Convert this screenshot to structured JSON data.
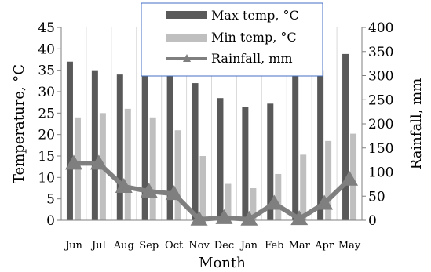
{
  "chart_data": {
    "type": "bar",
    "categories": [
      "Jun",
      "Jul",
      "Aug",
      "Sep",
      "Oct",
      "Nov",
      "Dec",
      "Jan",
      "Feb",
      "Mar",
      "Apr",
      "May"
    ],
    "series": [
      {
        "name": "Max temp, °C",
        "type": "bar",
        "axis": "left",
        "color": "#595959",
        "values": [
          37,
          35,
          34,
          36,
          35,
          32,
          28.5,
          26.5,
          27.2,
          34.5,
          35,
          38.8
        ]
      },
      {
        "name": "Min temp, °C",
        "type": "bar",
        "axis": "left",
        "color": "#bfbfbf",
        "values": [
          24,
          25,
          26,
          24,
          21,
          15,
          8.5,
          7.5,
          10.8,
          15.3,
          18.5,
          20.2
        ]
      },
      {
        "name": "Rainfall, mm",
        "type": "line",
        "axis": "right",
        "color": "#7f7f7f",
        "marker": "triangle",
        "values": [
          118,
          118,
          70,
          60,
          55,
          2,
          5,
          2,
          35,
          3,
          35,
          85
        ]
      }
    ],
    "xlabel": "Month",
    "ylabel": "Temperature, °C",
    "y2label": "Rainfall, mm",
    "ylim": [
      0,
      45
    ],
    "yticks": [
      0,
      5,
      10,
      15,
      20,
      25,
      30,
      35,
      40,
      45
    ],
    "y2lim": [
      0,
      400
    ],
    "y2ticks": [
      0,
      50,
      100,
      150,
      200,
      250,
      300,
      350,
      400
    ],
    "grid": "vertical",
    "legend": "top-center"
  }
}
